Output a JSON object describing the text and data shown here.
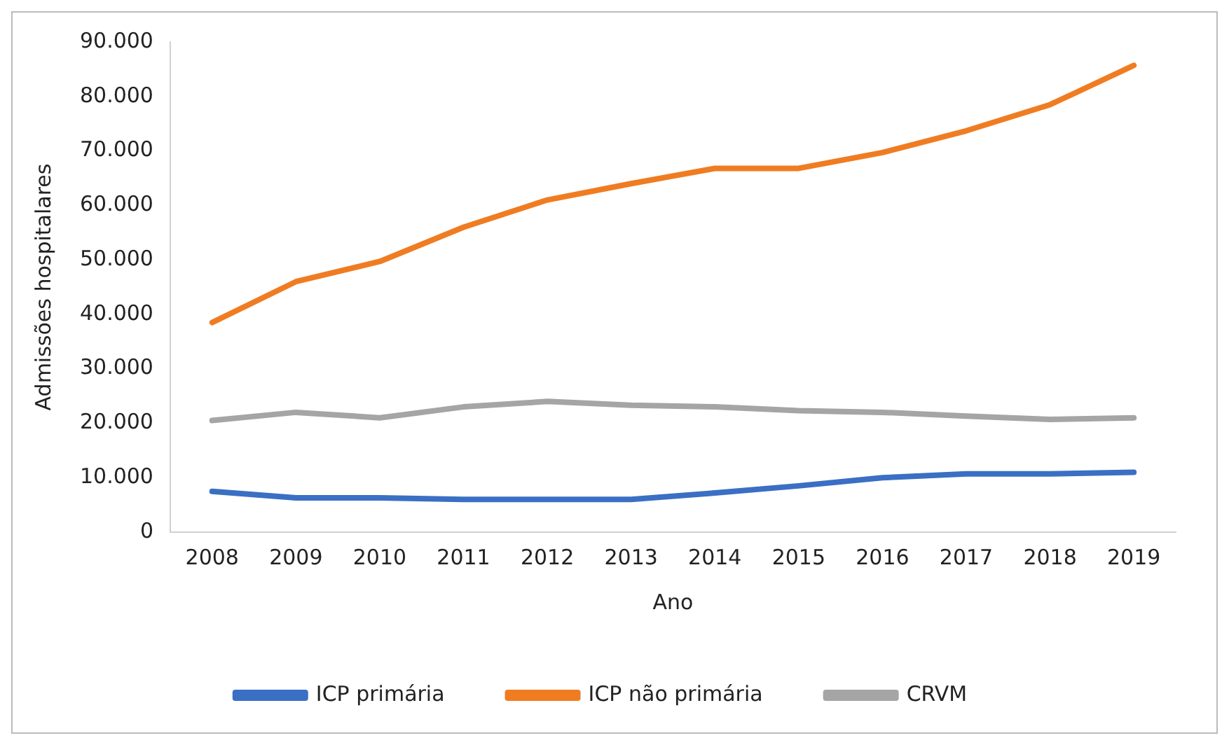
{
  "chart_data": {
    "type": "line",
    "xlabel": "Ano",
    "ylabel": "Admissões hospitalares",
    "categories": [
      "2008",
      "2009",
      "2010",
      "2011",
      "2012",
      "2013",
      "2014",
      "2015",
      "2016",
      "2017",
      "2018",
      "2019"
    ],
    "series": [
      {
        "name": "ICP primária",
        "color": "#3a6fc4",
        "values": [
          7500,
          6300,
          6300,
          6000,
          6000,
          6000,
          7200,
          8500,
          10000,
          10700,
          10700,
          11000
        ]
      },
      {
        "name": "ICP não primária",
        "color": "#f07c22",
        "values": [
          38500,
          46000,
          49700,
          56000,
          61000,
          64000,
          66800,
          66800,
          69700,
          73700,
          78500,
          85700
        ]
      },
      {
        "name": "CRVM",
        "color": "#a5a5a5",
        "values": [
          20500,
          22000,
          21000,
          23000,
          24000,
          23300,
          23000,
          22300,
          22000,
          21300,
          20700,
          21000
        ]
      }
    ],
    "ylim": [
      0,
      90000
    ],
    "yticks": [
      0,
      {
        "value": 10000,
        "label": "10.000"
      },
      {
        "value": 20000,
        "label": "20.000"
      },
      {
        "value": 30000,
        "label": "30.000"
      },
      {
        "value": 40000,
        "label": "40.000"
      },
      {
        "value": 50000,
        "label": "50.000"
      },
      {
        "value": 60000,
        "label": "60.000"
      },
      {
        "value": 70000,
        "label": "70.000"
      },
      {
        "value": 80000,
        "label": "80.000"
      },
      {
        "value": 90000,
        "label": "90.000"
      }
    ],
    "grid": false,
    "legend": "bottom",
    "marker": "none",
    "line_style": "solid"
  }
}
